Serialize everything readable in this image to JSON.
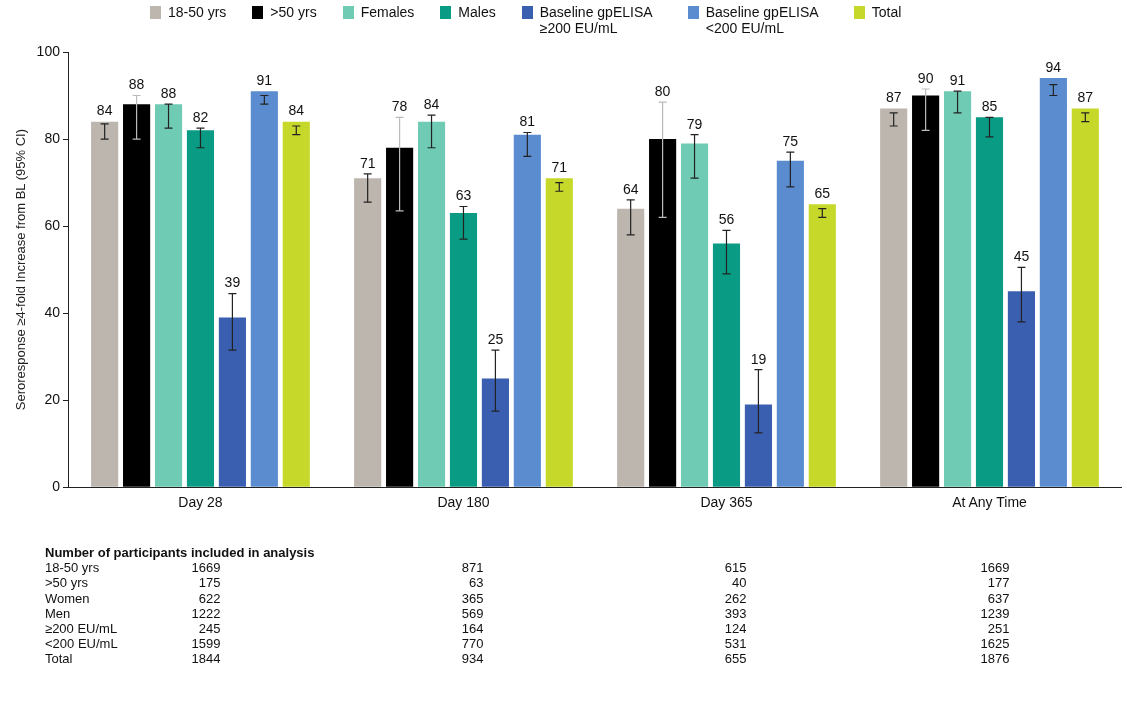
{
  "chart_data": {
    "type": "bar",
    "ylabel": "Seroresponse ≥4-fold Increase from BL (95% CI)",
    "categories": [
      "Day 28",
      "Day 180",
      "Day 365",
      "At Any Time"
    ],
    "series": [
      {
        "name": "18-50 yrs",
        "color": "#bdb6af",
        "values": [
          84,
          71,
          64,
          87
        ],
        "errors": [
          [
            80,
            83.5
          ],
          [
            65.5,
            72
          ],
          [
            58,
            66
          ],
          [
            83,
            86
          ]
        ]
      },
      {
        "name": ">50 yrs",
        "color": "#000000",
        "values": [
          88,
          78,
          80,
          90
        ],
        "errors": [
          [
            80,
            90
          ],
          [
            63.5,
            85
          ],
          [
            62,
            88.5
          ],
          [
            82,
            91.5
          ]
        ]
      },
      {
        "name": "Females",
        "color": "#6fcbb3",
        "values": [
          88,
          84,
          79,
          91
        ],
        "errors": [
          [
            82.5,
            88
          ],
          [
            78,
            85.5
          ],
          [
            71,
            81
          ],
          [
            86,
            91
          ]
        ]
      },
      {
        "name": "Males",
        "color": "#0a9b85",
        "values": [
          82,
          63,
          56,
          85
        ],
        "errors": [
          [
            78,
            82.5
          ],
          [
            57,
            64.5
          ],
          [
            49,
            59
          ],
          [
            80.5,
            85
          ]
        ]
      },
      {
        "name": "Baseline gpELISA ≥200 EU/mL",
        "color": "#3a5fb0",
        "values": [
          39,
          25,
          19,
          45
        ],
        "errors": [
          [
            31.5,
            44.5
          ],
          [
            17.5,
            31.5
          ],
          [
            12.5,
            27
          ],
          [
            38,
            50.5
          ]
        ]
      },
      {
        "name": "Baseline gpELISA <200 EU/mL",
        "color": "#5b8ccf",
        "values": [
          91,
          81,
          75,
          94
        ],
        "errors": [
          [
            88,
            90
          ],
          [
            76,
            81.5
          ],
          [
            69,
            77
          ],
          [
            90,
            92.5
          ]
        ]
      },
      {
        "name": "Total",
        "color": "#c6d92a",
        "values": [
          84,
          71,
          65,
          87
        ],
        "errors": [
          [
            81,
            83
          ],
          [
            68,
            70
          ],
          [
            62,
            64
          ],
          [
            84,
            86
          ]
        ]
      }
    ],
    "ylim": [
      0,
      100
    ],
    "yticks": [
      0,
      20,
      40,
      60,
      80,
      100
    ],
    "grid": false,
    "legend": "top",
    "data_labels": true,
    "annotations": [
      "Number of participants included in analysis",
      "18-50 yrs 1669 871 615 1669",
      ">50 yrs 175 63 40 177",
      "Women 622 365 262 637",
      "Men 1222 569 393 1239",
      "≥200 EU/mL 245 164 124 251",
      "<200 EU/mL 1599 770 531 1625",
      "Total 1844 934 655 1876"
    ]
  }
}
